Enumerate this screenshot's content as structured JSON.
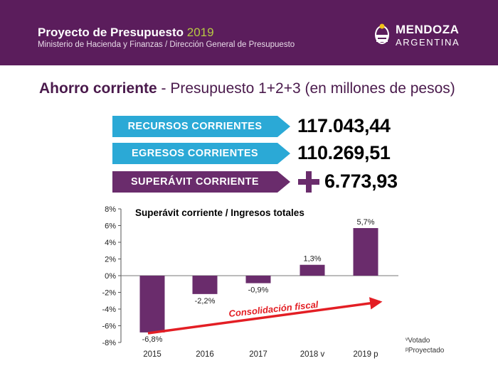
{
  "header": {
    "title": "Proyecto de Presupuesto",
    "year": "2019",
    "subtitle": "Ministerio de Hacienda y Finanzas / Dirección General de Presupuesto",
    "logo_name": "MENDOZA",
    "logo_country": "ARGENTINA"
  },
  "headline": {
    "bold": "Ahorro corriente",
    "rest": " - Presupuesto 1+2+3 (en millones de pesos)"
  },
  "metrics": [
    {
      "label": "RECURSOS CORRIENTES",
      "value": "117.043,44"
    },
    {
      "label": "EGRESOS CORRIENTES",
      "value": "110.269,51"
    },
    {
      "label": "SUPERÁVIT CORRIENTE",
      "value": "6.773,93"
    }
  ],
  "colors": {
    "header_bg": "#5b1d5c",
    "year": "#b6c843",
    "blue": "#2ba9d6",
    "purple": "#6a2c6c",
    "bar": "#6a2c6c",
    "arrow": "#e31e24"
  },
  "notes": {
    "votado": "ᵛVotado",
    "proyectado": "ᵖProyectado"
  },
  "chart_data": {
    "type": "bar",
    "title": "Superávit corriente / Ingresos totales",
    "categories": [
      "2015",
      "2016",
      "2017",
      "2018 v",
      "2019 p"
    ],
    "values": [
      -6.8,
      -2.2,
      -0.9,
      1.3,
      5.7
    ],
    "value_labels": [
      "-6,8%",
      "-2,2%",
      "-0,9%",
      "1,3%",
      "5,7%"
    ],
    "ylim": [
      -8,
      8
    ],
    "yticks": [
      8,
      6,
      4,
      2,
      0,
      -2,
      -4,
      -6,
      -8
    ],
    "ytick_labels": [
      "8%",
      "6%",
      "4%",
      "2%",
      "0%",
      "-2%",
      "-4%",
      "-6%",
      "-8%"
    ],
    "annotation": "Consolidación fiscal",
    "grid": false
  }
}
